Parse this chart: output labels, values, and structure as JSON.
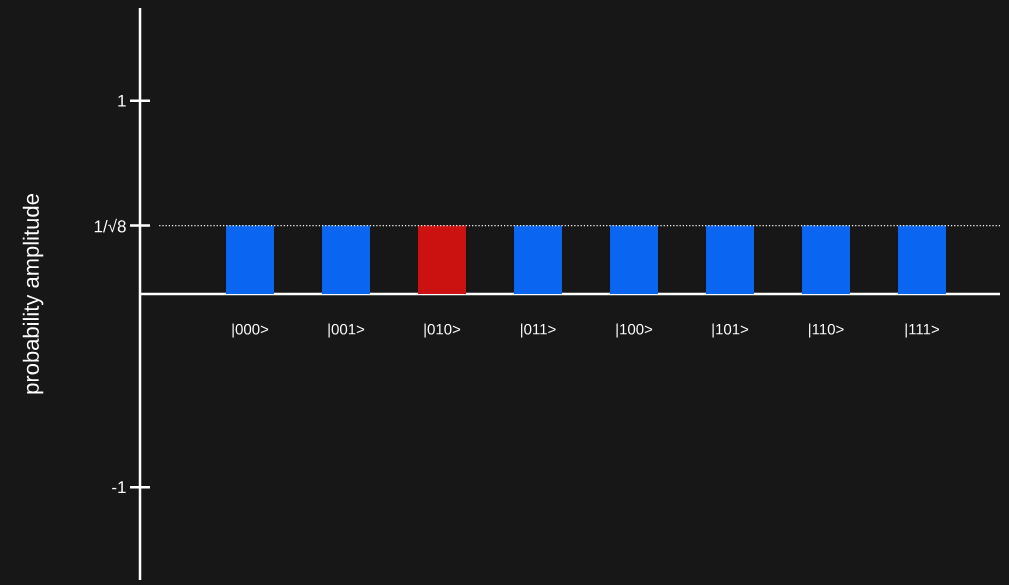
{
  "chart_data": {
    "type": "bar",
    "ylabel": "probability amplitude",
    "categories": [
      "|000>",
      "|001>",
      "|010>",
      "|011>",
      "|100>",
      "|101>",
      "|110>",
      "|111>"
    ],
    "values": [
      0.354,
      0.354,
      0.354,
      0.354,
      0.354,
      0.354,
      0.354,
      0.354
    ],
    "colors": [
      "#0a66f0",
      "#0a66f0",
      "#cc1111",
      "#0a66f0",
      "#0a66f0",
      "#0a66f0",
      "#0a66f0",
      "#0a66f0"
    ],
    "ylim": [
      -1.48,
      1.48
    ],
    "yticks": [
      1,
      {
        "value": 0.354,
        "label": "1/√8"
      },
      -1
    ],
    "ref_lines": [
      {
        "axis": "y",
        "value": 0.354,
        "color": "#ffffff",
        "line_style": "dotted"
      }
    ],
    "grid": false
  }
}
